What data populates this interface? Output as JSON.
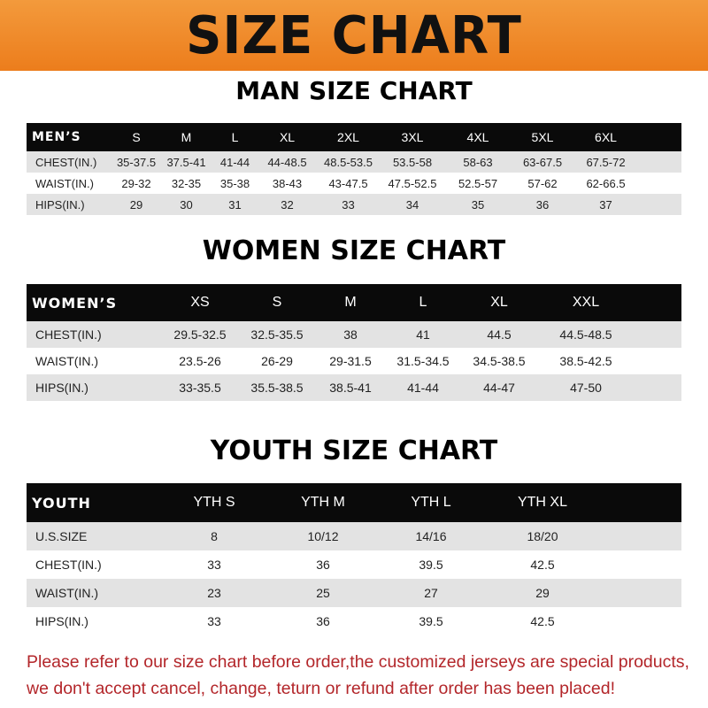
{
  "title": "SIZE CHART",
  "men": {
    "title": "MAN SIZE CHART",
    "header": [
      "MEN’S",
      "S",
      "M",
      "L",
      "XL",
      "2XL",
      "3XL",
      "4XL",
      "5XL",
      "6XL"
    ],
    "rows": [
      [
        "CHEST(IN.)",
        "35-37.5",
        "37.5-41",
        "41-44",
        "44-48.5",
        "48.5-53.5",
        "53.5-58",
        "58-63",
        "63-67.5",
        "67.5-72"
      ],
      [
        "WAIST(IN.)",
        "29-32",
        "32-35",
        "35-38",
        "38-43",
        "43-47.5",
        "47.5-52.5",
        "52.5-57",
        "57-62",
        "62-66.5"
      ],
      [
        "HIPS(IN.)",
        "29",
        "30",
        "31",
        "32",
        "33",
        "34",
        "35",
        "36",
        "37"
      ]
    ]
  },
  "women": {
    "title": "WOMEN SIZE CHART",
    "header": [
      "WOMEN’S",
      "XS",
      "S",
      "M",
      "L",
      "XL",
      "XXL"
    ],
    "rows": [
      [
        "CHEST(IN.)",
        "29.5-32.5",
        "32.5-35.5",
        "38",
        "41",
        "44.5",
        "44.5-48.5"
      ],
      [
        "WAIST(IN.)",
        "23.5-26",
        "26-29",
        "29-31.5",
        "31.5-34.5",
        "34.5-38.5",
        "38.5-42.5"
      ],
      [
        "HIPS(IN.)",
        "33-35.5",
        "35.5-38.5",
        "38.5-41",
        "41-44",
        "44-47",
        "47-50"
      ]
    ]
  },
  "youth": {
    "title": "YOUTH SIZE CHART",
    "header": [
      "YOUTH",
      "YTH S",
      "YTH M",
      "YTH L",
      "YTH XL"
    ],
    "rows": [
      [
        "U.S.SIZE",
        "8",
        "10/12",
        "14/16",
        "18/20"
      ],
      [
        "CHEST(IN.)",
        "33",
        "36",
        "39.5",
        "42.5"
      ],
      [
        "WAIST(IN.)",
        "23",
        "25",
        "27",
        "29"
      ],
      [
        "HIPS(IN.)",
        "33",
        "36",
        "39.5",
        "42.5"
      ]
    ]
  },
  "notice": [
    "Please refer to our size chart before order,the customized jerseys are special products,",
    "we don't accept cancel, change, teturn or refund after order has been placed!"
  ],
  "colors": {
    "banner": "#ec7d1c",
    "header_row": "#0a0a0a",
    "shaded_row": "#e3e3e3",
    "notice": "#b3262a"
  }
}
